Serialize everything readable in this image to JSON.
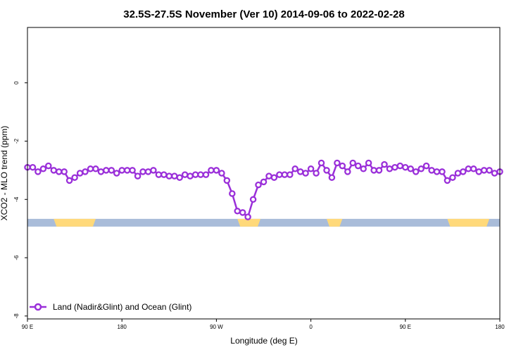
{
  "chart_data": {
    "type": "line",
    "title": "32.5S-27.5S November (Ver 10)   2014-09-06 to 2022-02-28",
    "xlabel": "Longitude (deg E)",
    "ylabel": "XCO2 - MLO trend (ppm)",
    "xlim": [
      90,
      540
    ],
    "ylim": [
      -8.1,
      1.9
    ],
    "x_ticks": [
      {
        "value": 90,
        "label": "90 E"
      },
      {
        "value": 180,
        "label": "180"
      },
      {
        "value": 270,
        "label": "90 W"
      },
      {
        "value": 360,
        "label": "0"
      },
      {
        "value": 450,
        "label": "90 E"
      },
      {
        "value": 540,
        "label": "180"
      }
    ],
    "y_ticks": [
      {
        "value": 0,
        "label": "0"
      },
      {
        "value": -2,
        "label": "-2"
      },
      {
        "value": -4,
        "label": "-4"
      },
      {
        "value": -6,
        "label": "-6"
      },
      {
        "value": -8,
        "label": "-8"
      }
    ],
    "series": [
      {
        "name": "Land (Nadir&Glint) and Ocean (Glint)",
        "color": "#9a2fd9",
        "x": [
          90,
          95,
          100,
          105,
          110,
          115,
          120,
          125,
          130,
          135,
          140,
          145,
          150,
          155,
          160,
          165,
          170,
          175,
          180,
          185,
          190,
          195,
          200,
          205,
          210,
          215,
          220,
          225,
          230,
          235,
          240,
          245,
          250,
          255,
          260,
          265,
          270,
          275,
          280,
          285,
          290,
          295,
          300,
          305,
          310,
          315,
          320,
          325,
          330,
          335,
          340,
          345,
          350,
          355,
          360,
          365,
          370,
          375,
          380,
          385,
          390,
          395,
          400,
          405,
          410,
          415,
          420,
          425,
          430,
          435,
          440,
          445,
          450,
          455,
          460,
          465,
          470,
          475,
          480,
          485,
          490,
          495,
          500,
          505,
          510,
          515,
          520,
          525,
          530,
          535,
          540
        ],
        "y": [
          -2.9,
          -2.9,
          -3.05,
          -2.95,
          -2.85,
          -3.0,
          -3.05,
          -3.05,
          -3.35,
          -3.25,
          -3.1,
          -3.05,
          -2.95,
          -2.95,
          -3.05,
          -3.0,
          -3.0,
          -3.1,
          -3.0,
          -3.0,
          -3.0,
          -3.2,
          -3.05,
          -3.05,
          -3.0,
          -3.15,
          -3.15,
          -3.2,
          -3.2,
          -3.25,
          -3.15,
          -3.2,
          -3.15,
          -3.15,
          -3.15,
          -3.0,
          -3.0,
          -3.1,
          -3.35,
          -3.8,
          -4.4,
          -4.45,
          -4.6,
          -4.0,
          -3.5,
          -3.4,
          -3.2,
          -3.25,
          -3.15,
          -3.15,
          -3.15,
          -2.95,
          -3.05,
          -3.1,
          -2.95,
          -3.1,
          -2.75,
          -3.0,
          -3.25,
          -2.75,
          -2.85,
          -3.05,
          -2.75,
          -2.85,
          -2.95,
          -2.75,
          -3.0,
          -3.0,
          -2.8,
          -2.95,
          -2.9,
          -2.85,
          -2.9,
          -2.95,
          -3.05,
          -2.95,
          -2.85,
          -3.0,
          -3.05,
          -3.05,
          -3.35,
          -3.25,
          -3.1,
          -3.05,
          -2.95,
          -2.95,
          -3.05,
          -3.0,
          -3.0,
          -3.1,
          -3.05
        ]
      }
    ],
    "surface_band": {
      "y": -4.8,
      "ocean_color": "#a9bcd9",
      "land_color": "#ffd97a",
      "land_ranges": [
        [
          115,
          155
        ],
        [
          290,
          312
        ],
        [
          375,
          390
        ],
        [
          490,
          530
        ]
      ]
    },
    "legend": {
      "position": "bottom-left"
    },
    "grid": false
  }
}
